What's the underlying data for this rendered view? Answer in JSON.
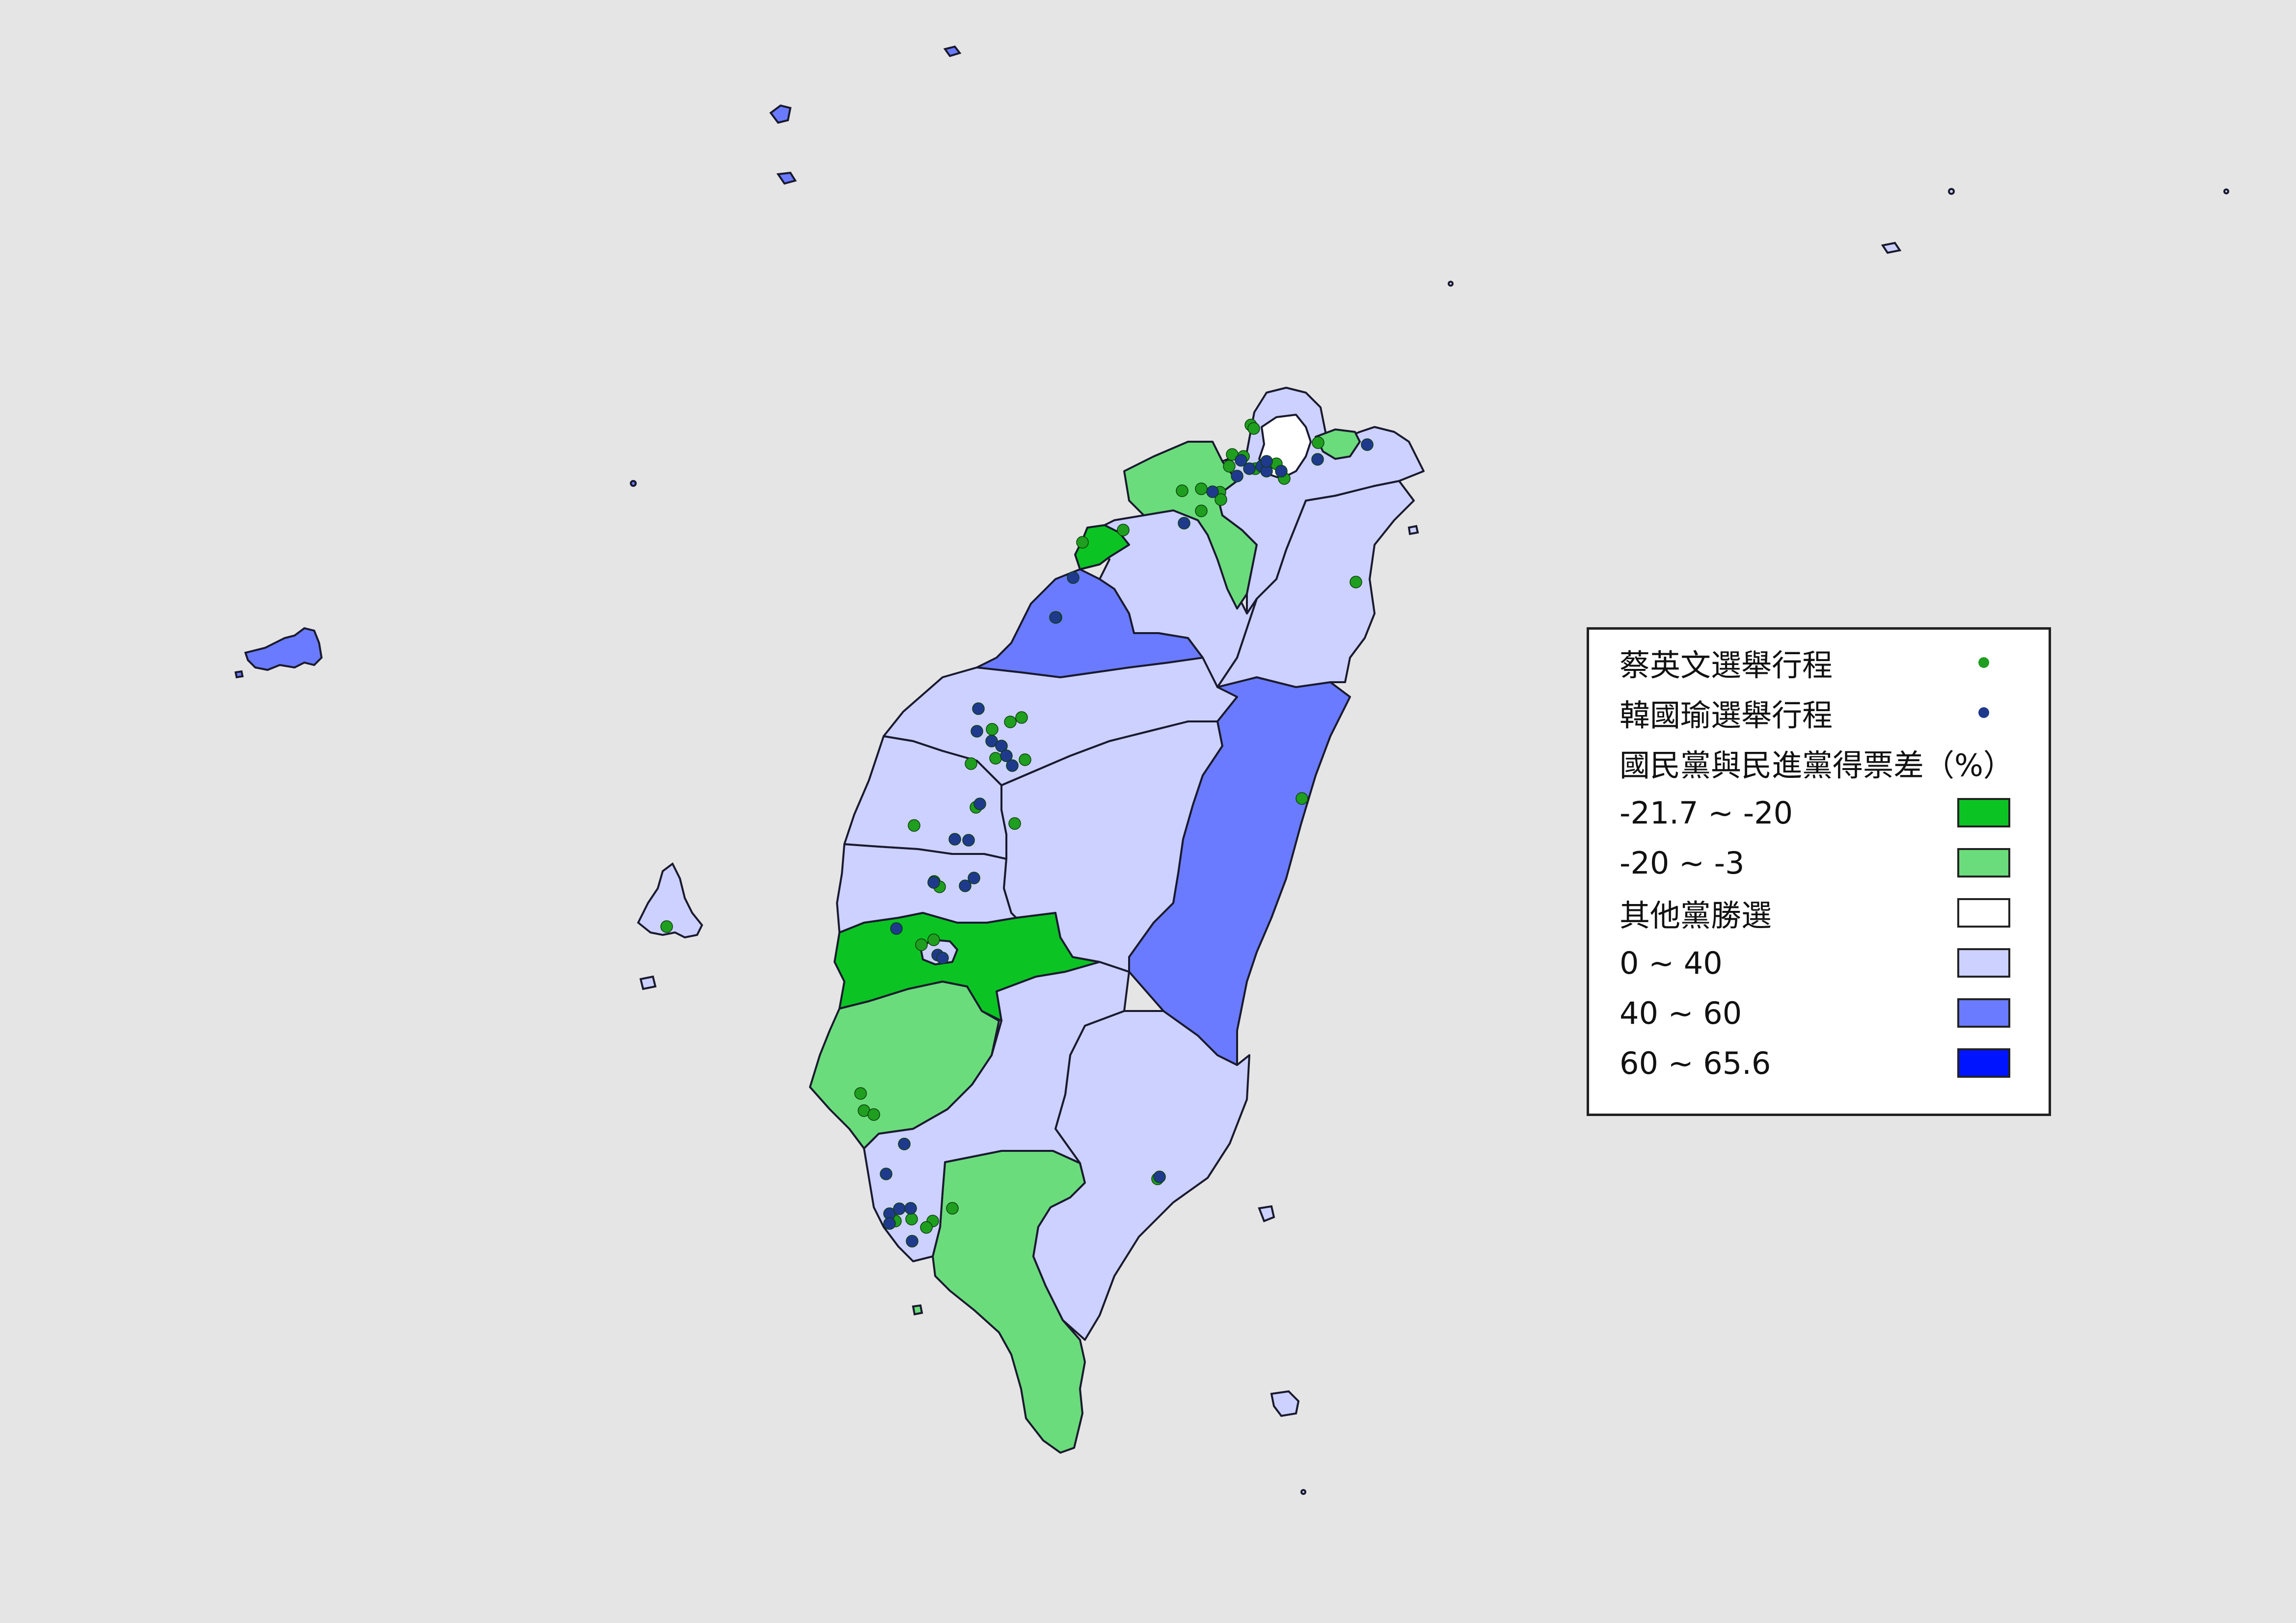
{
  "legend": {
    "point_tsai": {
      "label": "蔡英文選舉行程",
      "color": "#1f9e1f"
    },
    "point_han": {
      "label": "韓國瑜選舉行程",
      "color": "#1f3a8c"
    },
    "fill_title": "國民黨與民進黨得票差（%）",
    "classes": [
      {
        "label": "-21.7 ~ -20",
        "color": "#0bc424"
      },
      {
        "label": "-20 ~ -3",
        "color": "#6bdc7c"
      },
      {
        "label": "其他黨勝選",
        "color": "#ffffff"
      },
      {
        "label": "0 ~ 40",
        "color": "#ccd1ff"
      },
      {
        "label": "40 ~ 60",
        "color": "#6a7bff"
      },
      {
        "label": "60 ~ 65.6",
        "color": "#0014ff"
      }
    ]
  },
  "map": {
    "background": "#e5e5e5",
    "border_color": "#1a1a2e",
    "regions": [
      {
        "id": "taipei",
        "class": "其他黨勝選"
      },
      {
        "id": "new-taipei",
        "class": "0 ~ 40"
      },
      {
        "id": "keelung",
        "class": "-20 ~ -3"
      },
      {
        "id": "taoyuan",
        "class": "-20 ~ -3"
      },
      {
        "id": "hsinchu-city",
        "class": "-21.7 ~ -20"
      },
      {
        "id": "hsinchu-county",
        "class": "0 ~ 40"
      },
      {
        "id": "yilan",
        "class": "0 ~ 40"
      },
      {
        "id": "miaoli",
        "class": "40 ~ 60"
      },
      {
        "id": "taichung",
        "class": "0 ~ 40"
      },
      {
        "id": "changhua",
        "class": "0 ~ 40"
      },
      {
        "id": "nantou",
        "class": "0 ~ 40"
      },
      {
        "id": "yunlin",
        "class": "0 ~ 40"
      },
      {
        "id": "hualien",
        "class": "40 ~ 60"
      },
      {
        "id": "chiayi-county",
        "class": "-21.7 ~ -20"
      },
      {
        "id": "chiayi-city",
        "class": "0 ~ 40"
      },
      {
        "id": "tainan",
        "class": "-20 ~ -3"
      },
      {
        "id": "kaohsiung",
        "class": "0 ~ 40"
      },
      {
        "id": "pingtung",
        "class": "-20 ~ -3"
      },
      {
        "id": "taitung",
        "class": "0 ~ 40"
      },
      {
        "id": "penghu",
        "class": "40 ~ 60"
      },
      {
        "id": "kinmen",
        "class": "0 ~ 40"
      },
      {
        "id": "lienchiang",
        "class": "40 ~ 60"
      }
    ],
    "tsai_points": [
      [
        2548,
        866
      ],
      [
        2554,
        873
      ],
      [
        2533,
        930
      ],
      [
        2510,
        926
      ],
      [
        2447,
        996
      ],
      [
        2408,
        1000
      ],
      [
        2485,
        1003
      ],
      [
        2504,
        950
      ],
      [
        2447,
        1041
      ],
      [
        2487,
        1018
      ],
      [
        2557,
        955
      ],
      [
        2600,
        945
      ],
      [
        2616,
        975
      ],
      [
        2685,
        902
      ],
      [
        2288,
        1080
      ],
      [
        2205,
        1105
      ],
      [
        2151,
        1258
      ],
      [
        2021,
        1486
      ],
      [
        2081,
        1462
      ],
      [
        2058,
        1471
      ],
      [
        2088,
        1548
      ],
      [
        2028,
        1545
      ],
      [
        1978,
        1556
      ],
      [
        2067,
        1678
      ],
      [
        1862,
        1682
      ],
      [
        1988,
        1645
      ],
      [
        1903,
        1796
      ],
      [
        1914,
        1807
      ],
      [
        1902,
        1915
      ],
      [
        1877,
        1925
      ],
      [
        1753,
        2228
      ],
      [
        1760,
        2263
      ],
      [
        1780,
        2271
      ],
      [
        1900,
        2488
      ],
      [
        1815,
        2475
      ],
      [
        1824,
        2488
      ],
      [
        1857,
        2484
      ],
      [
        1887,
        2501
      ],
      [
        1940,
        2462
      ],
      [
        1358,
        1888
      ],
      [
        2762,
        1186
      ],
      [
        2652,
        1627
      ],
      [
        2358,
        2402
      ]
    ],
    "han_points": [
      [
        2528,
        938
      ],
      [
        2545,
        955
      ],
      [
        2570,
        950
      ],
      [
        2580,
        960
      ],
      [
        2610,
        960
      ],
      [
        2520,
        970
      ],
      [
        2580,
        940
      ],
      [
        2684,
        936
      ],
      [
        2785,
        906
      ],
      [
        2470,
        1002
      ],
      [
        2412,
        1066
      ],
      [
        2186,
        1177
      ],
      [
        2150,
        1258
      ],
      [
        1993,
        1444
      ],
      [
        1990,
        1490
      ],
      [
        2020,
        1510
      ],
      [
        2040,
        1520
      ],
      [
        2050,
        1540
      ],
      [
        2062,
        1560
      ],
      [
        1996,
        1638
      ],
      [
        1945,
        1710
      ],
      [
        1973,
        1712
      ],
      [
        1984,
        1789
      ],
      [
        1966,
        1805
      ],
      [
        1902,
        1798
      ],
      [
        1826,
        1892
      ],
      [
        1910,
        1946
      ],
      [
        1920,
        1952
      ],
      [
        1842,
        2331
      ],
      [
        1805,
        2392
      ],
      [
        1812,
        2473
      ],
      [
        1832,
        2463
      ],
      [
        1855,
        2462
      ],
      [
        1812,
        2493
      ],
      [
        1858,
        2529
      ],
      [
        2362,
        2398
      ]
    ]
  }
}
